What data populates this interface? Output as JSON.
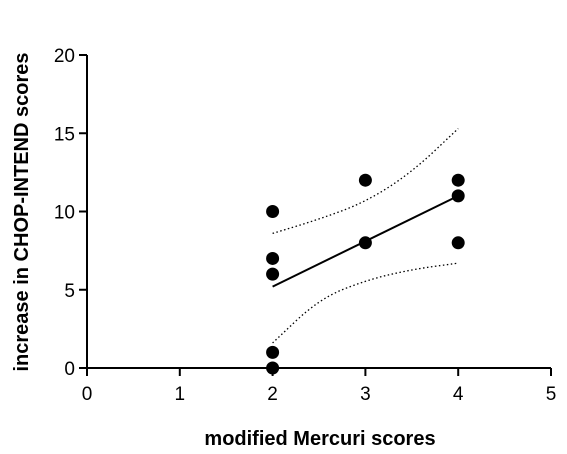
{
  "chart_data": {
    "type": "scatter",
    "title": "",
    "xlabel": "modified Mercuri scores",
    "ylabel": "increase in CHOP-INTEND scores",
    "xlim": [
      0,
      5
    ],
    "ylim": [
      0,
      20
    ],
    "x_ticks": [
      0,
      1,
      2,
      3,
      4,
      5
    ],
    "y_ticks": [
      0,
      5,
      10,
      15,
      20
    ],
    "x_tick_labels": [
      "0",
      "1",
      "2",
      "3",
      "4",
      "5"
    ],
    "y_tick_labels": [
      "0",
      "5",
      "10",
      "15",
      "20"
    ],
    "grid": false,
    "legend": "none",
    "points": [
      {
        "x": 2,
        "y": 10
      },
      {
        "x": 2,
        "y": 7
      },
      {
        "x": 2,
        "y": 6
      },
      {
        "x": 2,
        "y": 1
      },
      {
        "x": 2,
        "y": 0
      },
      {
        "x": 3,
        "y": 12
      },
      {
        "x": 3,
        "y": 8
      },
      {
        "x": 4,
        "y": 12
      },
      {
        "x": 4,
        "y": 11
      },
      {
        "x": 4,
        "y": 8
      }
    ],
    "regression_line": {
      "x": [
        2,
        4
      ],
      "y": [
        5.2,
        11.0
      ]
    },
    "confidence_band_upper": {
      "x": [
        2,
        2.5,
        3,
        3.5,
        4
      ],
      "y": [
        8.6,
        9.5,
        10.6,
        12.5,
        15.3
      ]
    },
    "confidence_band_lower": {
      "x": [
        2,
        2.5,
        3,
        3.5,
        4
      ],
      "y": [
        1.6,
        4.4,
        5.6,
        6.3,
        6.7
      ]
    },
    "colors": {
      "points": "#000000",
      "line": "#000000",
      "axis": "#000000"
    }
  }
}
